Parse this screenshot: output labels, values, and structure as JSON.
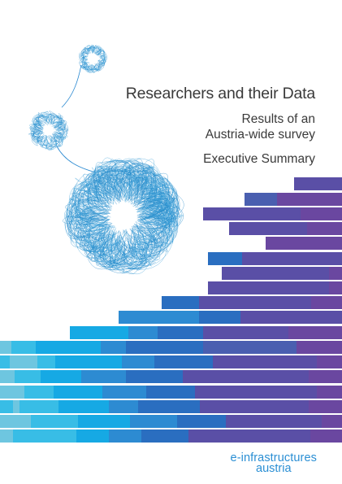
{
  "document": {
    "title": "Researchers and their Data",
    "subtitle_line1": "Results of an",
    "subtitle_line2": "Austria-wide survey",
    "summary_label": "Executive Summary"
  },
  "publisher": {
    "logo_line1": "e-infrastructures",
    "logo_line2": "austria"
  },
  "colors": {
    "text": "#3a3a3a",
    "brand_blue": "#2b8fd4",
    "bar_palette": [
      "#6ec6e0",
      "#38bde6",
      "#16a9e4",
      "#2d8bd2",
      "#2a6ec0",
      "#4a5fb0",
      "#5a4fa6",
      "#6a47a0",
      "#7a3f98"
    ]
  },
  "decorations": {
    "tangle_balls": "three blue tangled-thread balls",
    "bars": "stepped stack of multicolored horizontal bars"
  }
}
